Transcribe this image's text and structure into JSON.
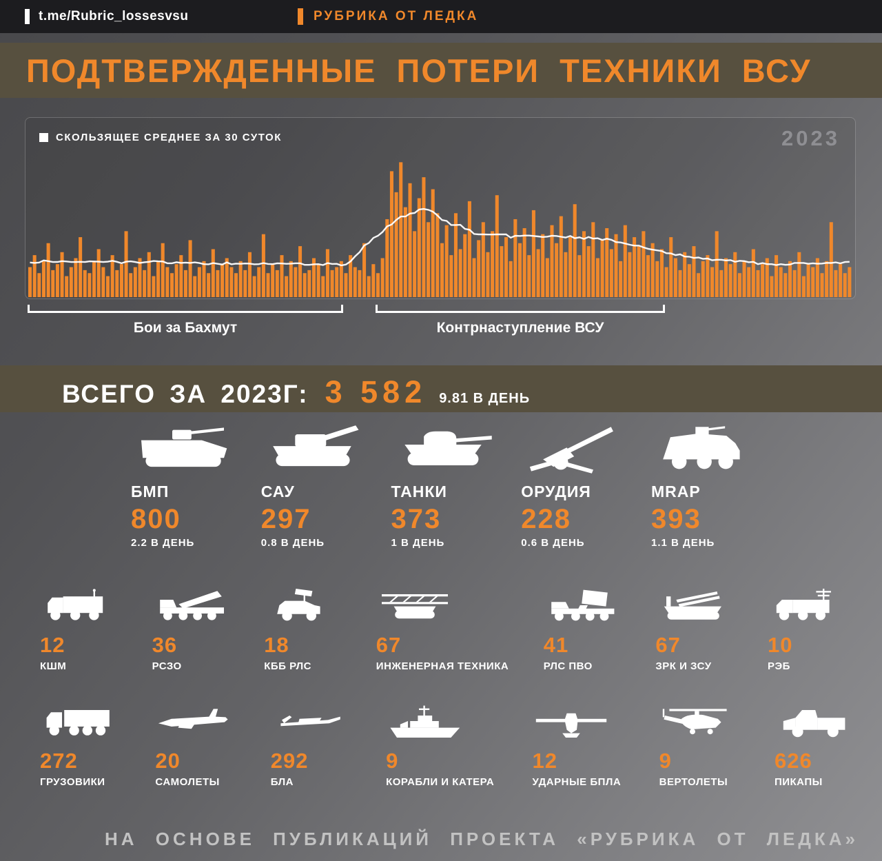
{
  "header": {
    "handle": "t.me/Rubric_lossesvsu",
    "brand": "РУБРИКА ОТ ЛЕДКА"
  },
  "chart_data": {
    "type": "bar",
    "title": "ПОДТВЕРЖДЕННЫЕ ПОТЕРИ ТЕХНИКИ ВСУ",
    "legend": "СКОЛЬЗЯЩЕЕ СРЕДНЕЕ ЗА 30 СУТОК",
    "year_label": "2023",
    "xlabel": "",
    "ylabel": "",
    "ylim": [
      0,
      46
    ],
    "grid": false,
    "legend_position": "top-left",
    "moving_average_window_days": 30,
    "values": [
      10,
      14,
      8,
      12,
      18,
      9,
      11,
      15,
      7,
      10,
      13,
      20,
      9,
      8,
      12,
      16,
      10,
      7,
      14,
      9,
      11,
      22,
      8,
      10,
      13,
      9,
      15,
      7,
      12,
      18,
      10,
      8,
      11,
      14,
      9,
      19,
      7,
      10,
      12,
      8,
      16,
      9,
      11,
      13,
      10,
      8,
      12,
      9,
      15,
      7,
      10,
      21,
      8,
      11,
      9,
      14,
      7,
      12,
      10,
      17,
      8,
      9,
      13,
      11,
      7,
      16,
      9,
      10,
      12,
      8,
      14,
      10,
      9,
      18,
      7,
      11,
      8,
      13,
      26,
      42,
      35,
      45,
      30,
      38,
      22,
      33,
      40,
      25,
      36,
      28,
      18,
      24,
      14,
      28,
      16,
      21,
      32,
      13,
      19,
      25,
      15,
      22,
      34,
      17,
      20,
      12,
      26,
      18,
      23,
      14,
      29,
      16,
      21,
      13,
      24,
      18,
      27,
      15,
      20,
      31,
      14,
      22,
      17,
      25,
      13,
      19,
      23,
      16,
      21,
      12,
      24,
      15,
      20,
      17,
      22,
      14,
      18,
      12,
      16,
      10,
      20,
      13,
      9,
      15,
      11,
      17,
      8,
      12,
      14,
      10,
      22,
      9,
      13,
      11,
      15,
      8,
      12,
      10,
      16,
      9,
      11,
      13,
      7,
      14,
      10,
      8,
      12,
      9,
      15,
      7,
      11,
      10,
      13,
      8,
      12,
      25,
      9,
      11,
      8,
      10
    ],
    "annotations": [
      {
        "label": "Бои за Бахмут",
        "span_fraction": [
          0.0,
          0.385
        ]
      },
      {
        "label": "Контрнаступление ВСУ",
        "span_fraction": [
          0.425,
          0.775
        ]
      }
    ]
  },
  "summary": {
    "label": "ВСЕГО ЗА 2023Г:",
    "total": "3 582",
    "per_day": "9.81 В ДЕНЬ"
  },
  "equipment": {
    "row1": [
      {
        "icon": "ifv-icon",
        "name": "БМП",
        "count": "800",
        "per_day": "2.2 В ДЕНЬ"
      },
      {
        "icon": "spg-icon",
        "name": "САУ",
        "count": "297",
        "per_day": "0.8 В ДЕНЬ"
      },
      {
        "icon": "tank-icon",
        "name": "ТАНКИ",
        "count": "373",
        "per_day": "1 В ДЕНЬ"
      },
      {
        "icon": "artillery-icon",
        "name": "ОРУДИЯ",
        "count": "228",
        "per_day": "0.6 В ДЕНЬ"
      },
      {
        "icon": "mrap-icon",
        "name": "MRAP",
        "count": "393",
        "per_day": "1.1 В ДЕНЬ"
      }
    ],
    "row2": [
      {
        "icon": "command-vehicle-icon",
        "count": "12",
        "name": "КШМ"
      },
      {
        "icon": "mlrs-icon",
        "count": "36",
        "name": "РСЗО"
      },
      {
        "icon": "counter-battery-radar-icon",
        "count": "18",
        "name": "КББ РЛС"
      },
      {
        "icon": "engineering-vehicle-icon",
        "count": "67",
        "name": "ИНЖЕНЕРНАЯ ТЕХНИКА"
      },
      {
        "icon": "air-defense-radar-icon",
        "count": "41",
        "name": "РЛС ПВО"
      },
      {
        "icon": "sam-icon",
        "count": "67",
        "name": "ЗРК И ЗСУ"
      },
      {
        "icon": "ew-icon",
        "count": "10",
        "name": "РЭБ"
      }
    ],
    "row3": [
      {
        "icon": "truck-icon",
        "count": "272",
        "name": "ГРУЗОВИКИ"
      },
      {
        "icon": "airplane-icon",
        "count": "20",
        "name": "САМОЛЕТЫ"
      },
      {
        "icon": "uav-icon",
        "count": "292",
        "name": "БЛА"
      },
      {
        "icon": "ship-icon",
        "count": "9",
        "name": "КОРАБЛИ И КАТЕРА"
      },
      {
        "icon": "strike-drone-icon",
        "count": "12",
        "name": "УДАРНЫЕ БПЛА"
      },
      {
        "icon": "helicopter-icon",
        "count": "9",
        "name": "ВЕРТОЛЕТЫ"
      },
      {
        "icon": "pickup-icon",
        "count": "626",
        "name": "ПИКАПЫ"
      }
    ]
  },
  "footer": "НА ОСНОВЕ ПУБЛИКАЦИЙ ПРОЕКТА «РУБРИКА ОТ ЛЕДКА»",
  "colors": {
    "accent": "#F0882B",
    "band": "#57503F",
    "header_bg": "#1C1C1F",
    "bar": "#F0882B",
    "line": "#FFFFFF",
    "background_dark": "#48484B",
    "background_light": "#909093"
  }
}
